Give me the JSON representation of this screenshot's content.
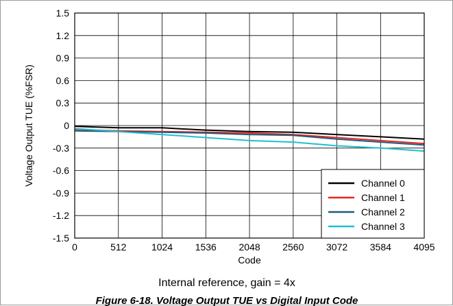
{
  "chart_data": {
    "type": "line",
    "xlabel": "Code",
    "ylabel": "Voltage Output TUE (%FSR)",
    "subtitle": "Internal reference, gain = 4x",
    "caption": "Figure 6-18. Voltage Output TUE vs Digital Input Code",
    "xlim": [
      0,
      4095
    ],
    "ylim": [
      -1.5,
      1.5
    ],
    "x_ticks": [
      0,
      512,
      1024,
      1536,
      2048,
      2560,
      3072,
      3584,
      4095
    ],
    "y_ticks": [
      1.5,
      1.2,
      0.9,
      0.6,
      0.3,
      0,
      -0.3,
      -0.6,
      -0.9,
      -1.2,
      -1.5
    ],
    "y_tick_labels": [
      "1.5",
      "1.2",
      "0.9",
      "0.6",
      "0.3",
      "0",
      "-0.3",
      "-0.6",
      "-0.9",
      "-1.2",
      "-1.5"
    ],
    "grid": true,
    "legend_position": "bottom-right",
    "x": [
      0,
      512,
      1024,
      1536,
      2048,
      2560,
      3072,
      3584,
      4095
    ],
    "series": [
      {
        "name": "Channel 0",
        "color": "#000000",
        "values": [
          -0.01,
          -0.03,
          -0.03,
          -0.06,
          -0.08,
          -0.09,
          -0.12,
          -0.15,
          -0.18
        ]
      },
      {
        "name": "Channel 1",
        "color": "#e8241f",
        "values": [
          -0.05,
          -0.07,
          -0.08,
          -0.09,
          -0.1,
          -0.12,
          -0.16,
          -0.2,
          -0.24
        ]
      },
      {
        "name": "Channel 2",
        "color": "#1f5a7a",
        "values": [
          -0.07,
          -0.08,
          -0.09,
          -0.1,
          -0.12,
          -0.13,
          -0.18,
          -0.22,
          -0.26
        ]
      },
      {
        "name": "Channel 3",
        "color": "#1fbfcf",
        "values": [
          -0.04,
          -0.08,
          -0.12,
          -0.16,
          -0.2,
          -0.22,
          -0.27,
          -0.3,
          -0.34
        ]
      }
    ]
  }
}
